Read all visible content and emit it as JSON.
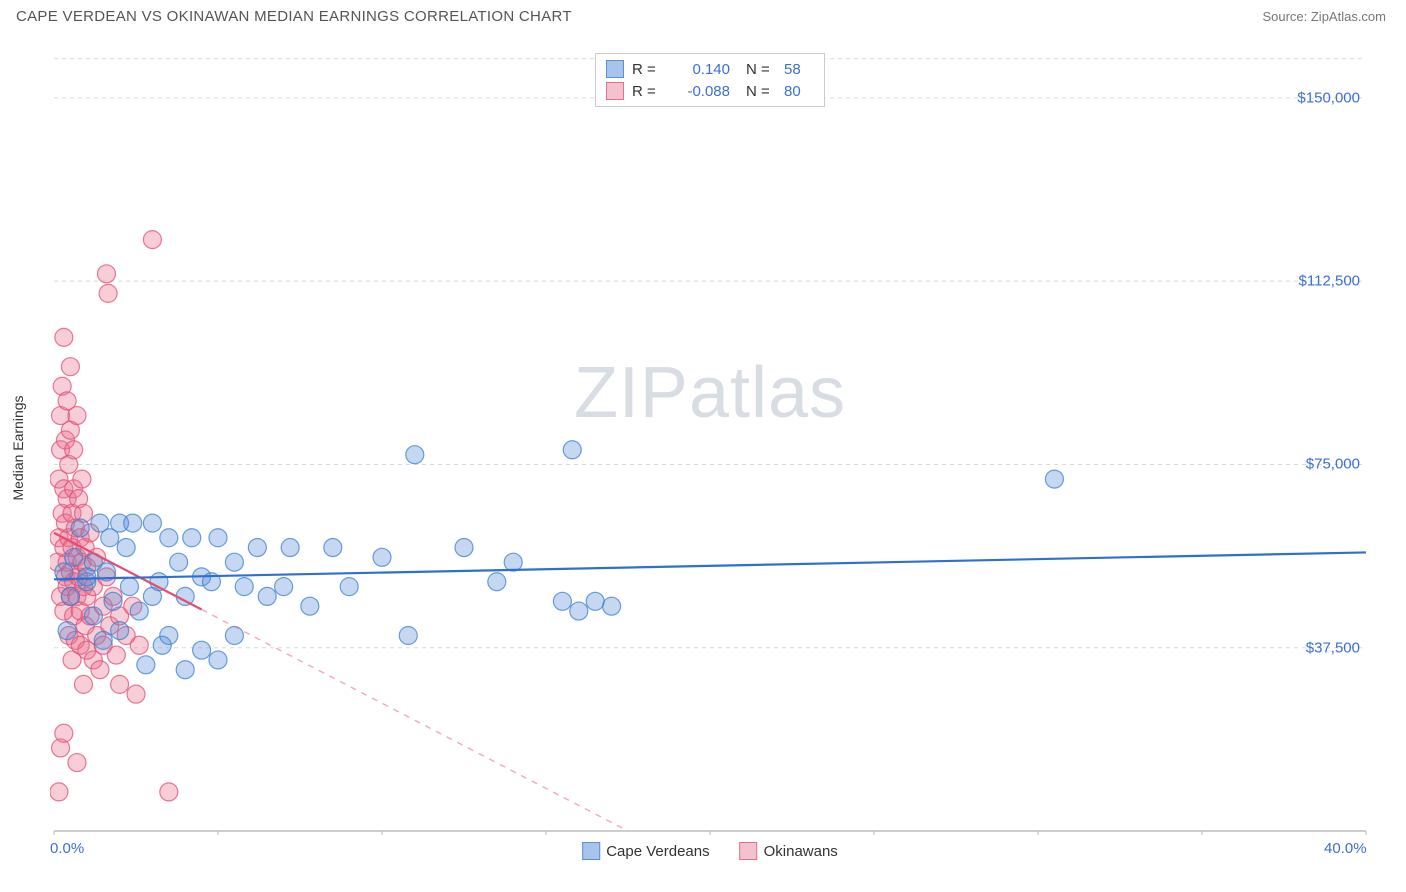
{
  "title": "CAPE VERDEAN VS OKINAWAN MEDIAN EARNINGS CORRELATION CHART",
  "source_prefix": "Source: ",
  "source_link": "ZipAtlas.com",
  "watermark_a": "ZIP",
  "watermark_b": "atlas",
  "y_axis_label": "Median Earnings",
  "chart": {
    "type": "scatter",
    "background_color": "#ffffff",
    "grid_color": "#d9d9d9",
    "grid_dash": "4,4",
    "axis_color": "#bdbdbd",
    "xlim": [
      0,
      40
    ],
    "ylim": [
      0,
      160000
    ],
    "x_ticks": [
      0,
      5,
      10,
      15,
      20,
      25,
      30,
      35,
      40
    ],
    "x_tick_labels_shown": {
      "0": "0.0%",
      "40": "40.0%"
    },
    "y_ticks": [
      37500,
      75000,
      112500,
      150000
    ],
    "y_tick_labels": [
      "$37,500",
      "$75,000",
      "$112,500",
      "$150,000"
    ],
    "marker_radius": 9,
    "marker_fill_opacity": 0.35,
    "marker_stroke_opacity": 0.75,
    "marker_stroke_width": 1.2,
    "trend_line_width": 2.2,
    "series": {
      "capeverdeans": {
        "label": "Cape Verdeans",
        "color": "#5b8fd6",
        "stroke": "#3b7fd0",
        "trend": {
          "x1": 0,
          "y1": 51500,
          "x2": 40,
          "y2": 57000,
          "dashed": false
        },
        "points": [
          [
            0.3,
            53000
          ],
          [
            0.4,
            41000
          ],
          [
            0.5,
            48000
          ],
          [
            0.6,
            56000
          ],
          [
            0.8,
            62000
          ],
          [
            1.0,
            51000
          ],
          [
            1.2,
            44000
          ],
          [
            1.2,
            55000
          ],
          [
            1.4,
            63000
          ],
          [
            1.5,
            39000
          ],
          [
            1.6,
            53000
          ],
          [
            1.7,
            60000
          ],
          [
            1.8,
            47000
          ],
          [
            2.0,
            63000
          ],
          [
            2.0,
            41000
          ],
          [
            2.2,
            58000
          ],
          [
            2.3,
            50000
          ],
          [
            2.4,
            63000
          ],
          [
            2.6,
            45000
          ],
          [
            2.8,
            34000
          ],
          [
            3.0,
            48000
          ],
          [
            3.0,
            63000
          ],
          [
            3.2,
            51000
          ],
          [
            3.3,
            38000
          ],
          [
            3.5,
            40000
          ],
          [
            3.5,
            60000
          ],
          [
            3.8,
            55000
          ],
          [
            4.0,
            48000
          ],
          [
            4.0,
            33000
          ],
          [
            4.2,
            60000
          ],
          [
            4.5,
            52000
          ],
          [
            4.5,
            37000
          ],
          [
            4.8,
            51000
          ],
          [
            5.0,
            60000
          ],
          [
            5.0,
            35000
          ],
          [
            5.5,
            55000
          ],
          [
            5.5,
            40000
          ],
          [
            5.8,
            50000
          ],
          [
            6.2,
            58000
          ],
          [
            6.5,
            48000
          ],
          [
            7.0,
            50000
          ],
          [
            7.2,
            58000
          ],
          [
            7.8,
            46000
          ],
          [
            8.5,
            58000
          ],
          [
            9.0,
            50000
          ],
          [
            10.0,
            56000
          ],
          [
            10.8,
            40000
          ],
          [
            11.0,
            77000
          ],
          [
            12.5,
            58000
          ],
          [
            13.5,
            51000
          ],
          [
            14.0,
            55000
          ],
          [
            15.5,
            47000
          ],
          [
            15.8,
            78000
          ],
          [
            16.0,
            45000
          ],
          [
            16.5,
            47000
          ],
          [
            17.0,
            46000
          ],
          [
            30.5,
            72000
          ],
          [
            1.0,
            52000
          ]
        ]
      },
      "okinawans": {
        "label": "Okinawans",
        "color": "#e76f8e",
        "stroke": "#e24f75",
        "trend": {
          "x1": 0,
          "y1": 61000,
          "x2": 17.5,
          "y2": 0,
          "dashed_after_x": 4.5
        },
        "points": [
          [
            0.1,
            55000
          ],
          [
            0.15,
            60000
          ],
          [
            0.15,
            72000
          ],
          [
            0.2,
            48000
          ],
          [
            0.2,
            85000
          ],
          [
            0.2,
            78000
          ],
          [
            0.25,
            91000
          ],
          [
            0.25,
            65000
          ],
          [
            0.3,
            45000
          ],
          [
            0.3,
            58000
          ],
          [
            0.3,
            101000
          ],
          [
            0.3,
            70000
          ],
          [
            0.35,
            52000
          ],
          [
            0.35,
            80000
          ],
          [
            0.35,
            63000
          ],
          [
            0.4,
            88000
          ],
          [
            0.4,
            50000
          ],
          [
            0.4,
            55000
          ],
          [
            0.4,
            68000
          ],
          [
            0.45,
            75000
          ],
          [
            0.45,
            40000
          ],
          [
            0.45,
            60000
          ],
          [
            0.5,
            82000
          ],
          [
            0.5,
            48000
          ],
          [
            0.5,
            53000
          ],
          [
            0.5,
            95000
          ],
          [
            0.55,
            65000
          ],
          [
            0.55,
            35000
          ],
          [
            0.55,
            58000
          ],
          [
            0.6,
            78000
          ],
          [
            0.6,
            44000
          ],
          [
            0.6,
            51000
          ],
          [
            0.6,
            70000
          ],
          [
            0.65,
            62000
          ],
          [
            0.65,
            39000
          ],
          [
            0.7,
            56000
          ],
          [
            0.7,
            48000
          ],
          [
            0.7,
            85000
          ],
          [
            0.75,
            52000
          ],
          [
            0.75,
            68000
          ],
          [
            0.8,
            45000
          ],
          [
            0.8,
            60000
          ],
          [
            0.8,
            38000
          ],
          [
            0.85,
            55000
          ],
          [
            0.85,
            72000
          ],
          [
            0.9,
            30000
          ],
          [
            0.9,
            50000
          ],
          [
            0.9,
            65000
          ],
          [
            0.95,
            42000
          ],
          [
            0.95,
            58000
          ],
          [
            1.0,
            48000
          ],
          [
            1.0,
            37000
          ],
          [
            1.0,
            54000
          ],
          [
            1.1,
            44000
          ],
          [
            1.1,
            61000
          ],
          [
            1.2,
            35000
          ],
          [
            1.2,
            50000
          ],
          [
            1.3,
            40000
          ],
          [
            1.3,
            56000
          ],
          [
            1.4,
            33000
          ],
          [
            1.5,
            46000
          ],
          [
            1.5,
            38000
          ],
          [
            1.6,
            52000
          ],
          [
            1.7,
            42000
          ],
          [
            1.6,
            114000
          ],
          [
            1.65,
            110000
          ],
          [
            1.8,
            48000
          ],
          [
            1.9,
            36000
          ],
          [
            2.0,
            44000
          ],
          [
            2.0,
            30000
          ],
          [
            2.2,
            40000
          ],
          [
            2.4,
            46000
          ],
          [
            2.5,
            28000
          ],
          [
            2.6,
            38000
          ],
          [
            3.0,
            121000
          ],
          [
            0.2,
            17000
          ],
          [
            0.3,
            20000
          ],
          [
            0.7,
            14000
          ],
          [
            3.5,
            8000
          ],
          [
            0.15,
            8000
          ]
        ]
      }
    }
  },
  "stats_legend": [
    {
      "swatch_fill": "#a9c4ea",
      "swatch_stroke": "#5b8fd6",
      "r_label": "R =",
      "r_value": "0.140",
      "n_label": "N =",
      "n_value": "58"
    },
    {
      "swatch_fill": "#f4c1cf",
      "swatch_stroke": "#e76f8e",
      "r_label": "R =",
      "r_value": "-0.088",
      "n_label": "N =",
      "n_value": "80"
    }
  ],
  "series_legend": [
    {
      "swatch_fill": "#a9c4ea",
      "swatch_stroke": "#5b8fd6",
      "label": "Cape Verdeans"
    },
    {
      "swatch_fill": "#f4c1cf",
      "swatch_stroke": "#e76f8e",
      "label": "Okinawans"
    }
  ]
}
